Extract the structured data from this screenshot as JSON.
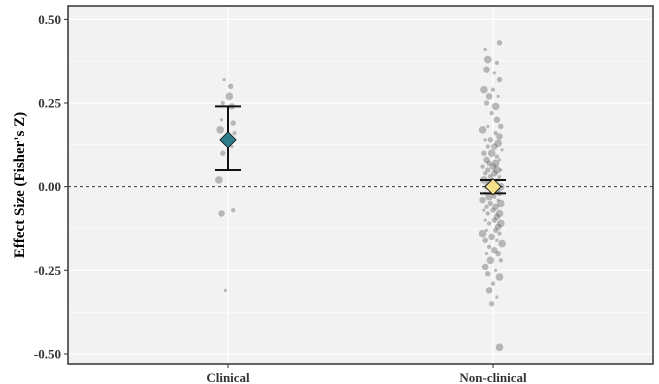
{
  "chart_data": {
    "type": "scatter",
    "title": "",
    "xlabel": "",
    "ylabel": "Effect Size (Fisher's Z)",
    "categories": [
      "Clinical",
      "Non-clinical"
    ],
    "ylim": [
      -0.53,
      0.54
    ],
    "yticks": [
      0.5,
      0.25,
      0.0,
      -0.25,
      -0.5
    ],
    "ytick_labels": [
      "0.50",
      "0.25",
      "0.00",
      "-0.25",
      "-0.50"
    ],
    "grid": true,
    "reference_line": 0.0,
    "summary": [
      {
        "category": "Clinical",
        "estimate": 0.14,
        "ci_low": 0.05,
        "ci_high": 0.24,
        "color": "#2e7d8c"
      },
      {
        "category": "Non-clinical",
        "estimate": 0.0,
        "ci_low": -0.02,
        "ci_high": 0.02,
        "color": "#f5e08a"
      }
    ],
    "points": {
      "Clinical": [
        [
          -0.03,
          0.32
        ],
        [
          0.02,
          0.3
        ],
        [
          0.01,
          0.27
        ],
        [
          -0.04,
          0.25
        ],
        [
          0.03,
          0.24
        ],
        [
          -0.05,
          0.2
        ],
        [
          0.04,
          0.19
        ],
        [
          -0.06,
          0.17
        ],
        [
          0.05,
          0.16
        ],
        [
          -0.02,
          0.14
        ],
        [
          0.03,
          0.12
        ],
        [
          -0.04,
          0.1
        ],
        [
          -0.07,
          0.02
        ],
        [
          0.04,
          -0.07
        ],
        [
          -0.05,
          -0.08
        ],
        [
          -0.02,
          -0.31
        ]
      ],
      "Non-clinical": [
        [
          -0.06,
          0.41
        ],
        [
          0.05,
          0.43
        ],
        [
          -0.04,
          0.38
        ],
        [
          0.03,
          0.37
        ],
        [
          -0.05,
          0.35
        ],
        [
          0.01,
          0.34
        ],
        [
          0.05,
          0.32
        ],
        [
          -0.07,
          0.29
        ],
        [
          0.0,
          0.29
        ],
        [
          -0.03,
          0.27
        ],
        [
          0.04,
          0.27
        ],
        [
          -0.05,
          0.25
        ],
        [
          0.02,
          0.24
        ],
        [
          -0.01,
          0.22
        ],
        [
          0.03,
          0.2
        ],
        [
          -0.04,
          0.18
        ],
        [
          0.06,
          0.18
        ],
        [
          -0.08,
          0.17
        ],
        [
          0.02,
          0.16
        ],
        [
          0.05,
          0.15
        ],
        [
          -0.06,
          0.14
        ],
        [
          -0.02,
          0.14
        ],
        [
          0.04,
          0.13
        ],
        [
          -0.04,
          0.12
        ],
        [
          0.01,
          0.12
        ],
        [
          0.07,
          0.11
        ],
        [
          -0.07,
          0.1
        ],
        [
          -0.01,
          0.1
        ],
        [
          0.03,
          0.09
        ],
        [
          -0.05,
          0.08
        ],
        [
          0.05,
          0.08
        ],
        [
          -0.03,
          0.07
        ],
        [
          0.02,
          0.07
        ],
        [
          -0.08,
          0.06
        ],
        [
          0.0,
          0.06
        ],
        [
          0.06,
          0.05
        ],
        [
          -0.04,
          0.05
        ],
        [
          0.03,
          0.05
        ],
        [
          -0.06,
          0.04
        ],
        [
          0.01,
          0.04
        ],
        [
          0.05,
          0.03
        ],
        [
          -0.02,
          0.03
        ],
        [
          -0.07,
          0.02
        ],
        [
          0.04,
          0.02
        ],
        [
          -0.03,
          0.01
        ],
        [
          0.02,
          0.01
        ],
        [
          -0.05,
          0.0
        ],
        [
          0.06,
          0.0
        ],
        [
          -0.01,
          -0.01
        ],
        [
          0.03,
          -0.01
        ],
        [
          -0.06,
          -0.02
        ],
        [
          0.05,
          -0.02
        ],
        [
          -0.03,
          -0.03
        ],
        [
          0.01,
          -0.03
        ],
        [
          -0.08,
          -0.04
        ],
        [
          0.04,
          -0.04
        ],
        [
          -0.02,
          -0.05
        ],
        [
          0.06,
          -0.05
        ],
        [
          -0.05,
          -0.06
        ],
        [
          0.02,
          -0.06
        ],
        [
          -0.07,
          -0.07
        ],
        [
          0.0,
          -0.07
        ],
        [
          0.05,
          -0.08
        ],
        [
          -0.04,
          -0.08
        ],
        [
          0.03,
          -0.09
        ],
        [
          -0.06,
          -0.1
        ],
        [
          0.01,
          -0.1
        ],
        [
          0.06,
          -0.11
        ],
        [
          -0.03,
          -0.11
        ],
        [
          0.04,
          -0.12
        ],
        [
          -0.05,
          -0.13
        ],
        [
          0.02,
          -0.13
        ],
        [
          -0.08,
          -0.14
        ],
        [
          0.05,
          -0.14
        ],
        [
          -0.01,
          -0.15
        ],
        [
          0.03,
          -0.16
        ],
        [
          -0.06,
          -0.16
        ],
        [
          0.07,
          -0.17
        ],
        [
          -0.03,
          -0.18
        ],
        [
          0.01,
          -0.19
        ],
        [
          -0.05,
          -0.2
        ],
        [
          0.04,
          -0.2
        ],
        [
          -0.02,
          -0.22
        ],
        [
          0.06,
          -0.22
        ],
        [
          -0.06,
          -0.24
        ],
        [
          0.02,
          -0.25
        ],
        [
          -0.04,
          -0.26
        ],
        [
          0.05,
          -0.27
        ],
        [
          0.0,
          -0.29
        ],
        [
          -0.03,
          -0.31
        ],
        [
          0.03,
          -0.33
        ],
        [
          -0.01,
          -0.35
        ],
        [
          0.05,
          -0.48
        ]
      ]
    }
  }
}
